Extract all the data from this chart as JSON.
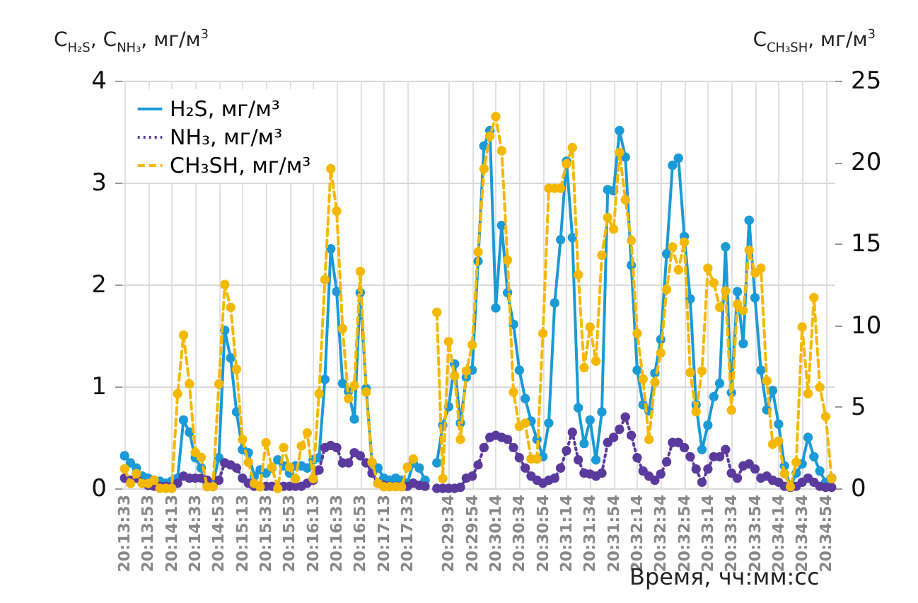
{
  "chart_data": {
    "type": "line",
    "xlabel": "Время, чч:мм:сс",
    "ylabel": "C$_{H₂S}$, C$_{NH₃}$, мг/м$^{3}$",
    "y2label": "C$_{CH₃SH}$, мг/м$^{3}$",
    "categories": [
      "20:13:33",
      null,
      null,
      null,
      "20:13:53",
      null,
      null,
      null,
      "20:14:13",
      null,
      null,
      null,
      "20:14:33",
      null,
      null,
      null,
      "20:14:53",
      null,
      null,
      null,
      "20:15:13",
      null,
      null,
      null,
      "20:15:33",
      null,
      null,
      null,
      "20:15:53",
      null,
      null,
      null,
      "20:16:13",
      null,
      null,
      null,
      "20:16:33",
      null,
      null,
      null,
      "20:16:53",
      null,
      null,
      null,
      "20:17:13",
      null,
      null,
      null,
      "20:17:33",
      null,
      null,
      null,
      null,
      null,
      null,
      "20:29:34",
      null,
      null,
      null,
      "20:29:54",
      null,
      null,
      null,
      "20:30:14",
      null,
      null,
      null,
      "20:30:34",
      null,
      null,
      null,
      "20:30:54",
      null,
      null,
      null,
      "20:31:14",
      null,
      null,
      null,
      "20:31:34",
      null,
      null,
      null,
      "20:31:54",
      null,
      null,
      null,
      "20:32:14",
      null,
      null,
      null,
      "20:32:34",
      null,
      null,
      null,
      "20:32:54",
      null,
      null,
      null,
      "20:33:14",
      null,
      null,
      null,
      "20:33:34",
      null,
      null,
      null,
      "20:33:54",
      null,
      null,
      null,
      "20:34:14",
      null,
      null,
      null,
      "20:34:34",
      null,
      null,
      null,
      "20:34:54",
      null
    ],
    "series": [
      {
        "name": "H₂S, мг/м³",
        "color": "#1a9ad6",
        "line_style": "solid",
        "values": [
          0.32,
          0.25,
          0.2,
          0.12,
          0.1,
          0.08,
          0.07,
          0.05,
          0.07,
          0.1,
          0.67,
          0.55,
          0.3,
          0.2,
          0.05,
          0.05,
          0.3,
          1.55,
          1.28,
          0.75,
          0.38,
          0.35,
          0.12,
          0.18,
          0.15,
          0.2,
          0.28,
          0.22,
          0.15,
          0.22,
          0.22,
          0.2,
          0.28,
          0.3,
          1.07,
          2.35,
          1.93,
          1.03,
          0.95,
          0.68,
          1.92,
          0.98,
          0.25,
          0.2,
          0.1,
          0.08,
          0.1,
          0.08,
          0.05,
          0.25,
          0.2,
          0.08,
          null,
          0.25,
          0.62,
          0.8,
          1.22,
          0.64,
          1.09,
          1.16,
          2.23,
          3.36,
          3.51,
          1.77,
          2.58,
          1.92,
          1.61,
          1.16,
          0.88,
          0.66,
          0.48,
          0.31,
          0.64,
          1.82,
          2.44,
          3.21,
          2.46,
          0.79,
          0.44,
          0.67,
          0.28,
          0.75,
          2.93,
          2.92,
          3.51,
          3.25,
          2.19,
          1.16,
          0.82,
          0.76,
          1.13,
          1.46,
          2.3,
          3.17,
          3.24,
          2.47,
          1.86,
          0.82,
          0.38,
          0.62,
          0.9,
          1.03,
          2.37,
          0.94,
          1.93,
          1.42,
          2.63,
          1.87,
          1.16,
          0.77,
          0.96,
          0.63,
          0.22,
          0.01,
          0.15,
          0.24,
          0.5,
          0.31,
          0.17,
          0.06,
          0.1
        ]
      },
      {
        "name": "NH₃, мг/м³",
        "color": "#5b3a9e",
        "line_style": "dotted",
        "values": [
          0.1,
          0.08,
          0.1,
          0.05,
          0.03,
          0.02,
          0.02,
          0.02,
          0.02,
          0.05,
          0.12,
          0.1,
          0.1,
          0.1,
          0.08,
          0.02,
          0.08,
          0.25,
          0.23,
          0.2,
          0.1,
          0.05,
          0.02,
          0.02,
          0.02,
          0.02,
          0.02,
          0.02,
          0.02,
          0.02,
          0.02,
          0.05,
          0.08,
          0.18,
          0.4,
          0.42,
          0.4,
          0.25,
          0.25,
          0.35,
          0.32,
          0.25,
          0.15,
          0.05,
          0.03,
          0.02,
          0.02,
          0.02,
          0.02,
          0.05,
          0.03,
          0.02,
          null,
          0,
          0,
          0,
          0,
          0.01,
          0.1,
          0.12,
          0.23,
          0.4,
          0.5,
          0.52,
          0.5,
          0.48,
          0.4,
          0.3,
          0.2,
          0.12,
          0.08,
          0.05,
          0.08,
          0.1,
          0.2,
          0.37,
          0.55,
          0.28,
          0.15,
          0.14,
          0.12,
          0.15,
          0.45,
          0.5,
          0.58,
          0.7,
          0.52,
          0.3,
          0.17,
          0.12,
          0.08,
          0.14,
          0.26,
          0.45,
          0.45,
          0.4,
          0.31,
          0.19,
          0.06,
          0.19,
          0.31,
          0.31,
          0.38,
          0.15,
          0.1,
          0.22,
          0.24,
          0.19,
          0.1,
          0.12,
          0.08,
          0.06,
          0.02,
          0.01,
          0.02,
          0.06,
          0.1,
          0.06,
          0.02,
          0.01,
          0.01
        ]
      },
      {
        "name": "CH₃SH, мг/м³",
        "color": "#f5b800",
        "line_style": "dashed",
        "axis": "y2",
        "values": [
          1.2,
          0.3,
          0.9,
          0.3,
          0.3,
          0.5,
          0,
          0,
          0,
          5.8,
          9.4,
          6.4,
          2.2,
          1.9,
          0.1,
          0.1,
          6.4,
          12.5,
          11.1,
          7.3,
          3,
          1.6,
          0.3,
          0.1,
          2.8,
          1.3,
          0,
          2.5,
          1.3,
          0.6,
          2.6,
          3.4,
          0.6,
          5.8,
          12.8,
          19.6,
          17,
          9.8,
          5.5,
          6.3,
          13.3,
          5.9,
          1.6,
          0.3,
          0.1,
          0.1,
          0.1,
          0.1,
          1.3,
          1.8,
          null,
          null,
          null,
          10.8,
          0.6,
          9,
          6.9,
          3,
          7.2,
          8.8,
          14.5,
          19.6,
          21.6,
          22.8,
          20.7,
          14,
          5.9,
          3.8,
          4,
          1.8,
          1.8,
          9.5,
          18.4,
          18.4,
          18.4,
          19.9,
          20.9,
          13.1,
          7.4,
          9.9,
          7.8,
          14.3,
          16.6,
          15.9,
          20.6,
          17.7,
          15.2,
          9.5,
          6.7,
          3,
          6.5,
          8.3,
          12.2,
          14.8,
          13.4,
          15.1,
          7.1,
          4.7,
          7.2,
          13.5,
          12.6,
          11.1,
          12.1,
          4.8,
          11.3,
          10.9,
          14.6,
          13.2,
          13.5,
          6.6,
          2.7,
          2.9,
          0.9,
          0.1,
          1.6,
          9.9,
          5.8,
          11.7,
          6.2,
          4.4,
          0.6
        ]
      }
    ],
    "ylim": [
      0,
      4
    ],
    "yticks": [
      0,
      1,
      2,
      3,
      4
    ],
    "y2lim": [
      0,
      25
    ],
    "y2ticks": [
      0,
      5,
      10,
      15,
      20,
      25
    ],
    "grid": true,
    "legend": "top left",
    "marker": "circle"
  }
}
